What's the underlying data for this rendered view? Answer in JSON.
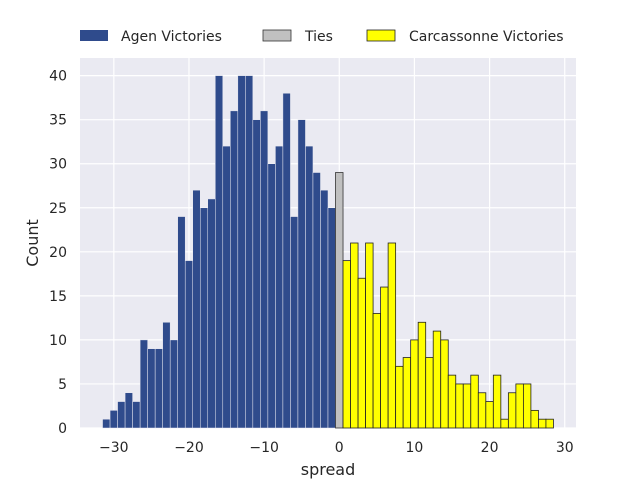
{
  "chart_data": {
    "type": "bar",
    "title": "",
    "xlabel": "spread",
    "ylabel": "Count",
    "xlim": [
      -34.5,
      31.5
    ],
    "ylim": [
      0,
      42
    ],
    "grid": true,
    "legend_position": "top (outside plot)",
    "xticks": [
      -30,
      -20,
      -10,
      0,
      10,
      20,
      30
    ],
    "xtick_labels": [
      "−30",
      "−20",
      "−10",
      "0",
      "10",
      "20",
      "30"
    ],
    "yticks": [
      0,
      5,
      10,
      15,
      20,
      25,
      30,
      35,
      40
    ],
    "ytick_labels": [
      "0",
      "5",
      "10",
      "15",
      "20",
      "25",
      "30",
      "35",
      "40"
    ],
    "series": [
      {
        "name": "Agen Victories",
        "color": "#2f4b8c",
        "edge": "none",
        "x": [
          -31,
          -30,
          -29,
          -28,
          -27,
          -26,
          -25,
          -24,
          -23,
          -22,
          -21,
          -20,
          -19,
          -18,
          -17,
          -16,
          -15,
          -14,
          -13,
          -12,
          -11,
          -10,
          -9,
          -8,
          -7,
          -6,
          -5,
          -4,
          -3,
          -2,
          -1
        ],
        "values": [
          1,
          2,
          3,
          4,
          3,
          10,
          9,
          9,
          12,
          10,
          24,
          19,
          27,
          25,
          26,
          40,
          32,
          36,
          40,
          40,
          35,
          36,
          30,
          32,
          38,
          24,
          35,
          32,
          29,
          27,
          25
        ]
      },
      {
        "name": "Ties",
        "color": "#c0c0c0",
        "edge": "#333333",
        "x": [
          0
        ],
        "values": [
          29
        ]
      },
      {
        "name": "Carcassonne Victories",
        "color": "#ffff00",
        "edge": "#222222",
        "x": [
          1,
          2,
          3,
          4,
          5,
          6,
          7,
          8,
          9,
          10,
          11,
          12,
          13,
          14,
          15,
          16,
          17,
          18,
          19,
          20,
          21,
          22,
          23,
          24,
          25,
          26,
          27,
          28
        ],
        "values": [
          19,
          21,
          17,
          21,
          13,
          16,
          21,
          7,
          8,
          10,
          12,
          8,
          11,
          10,
          6,
          5,
          5,
          6,
          4,
          3,
          6,
          1,
          4,
          5,
          5,
          2,
          1,
          1
        ]
      }
    ]
  }
}
